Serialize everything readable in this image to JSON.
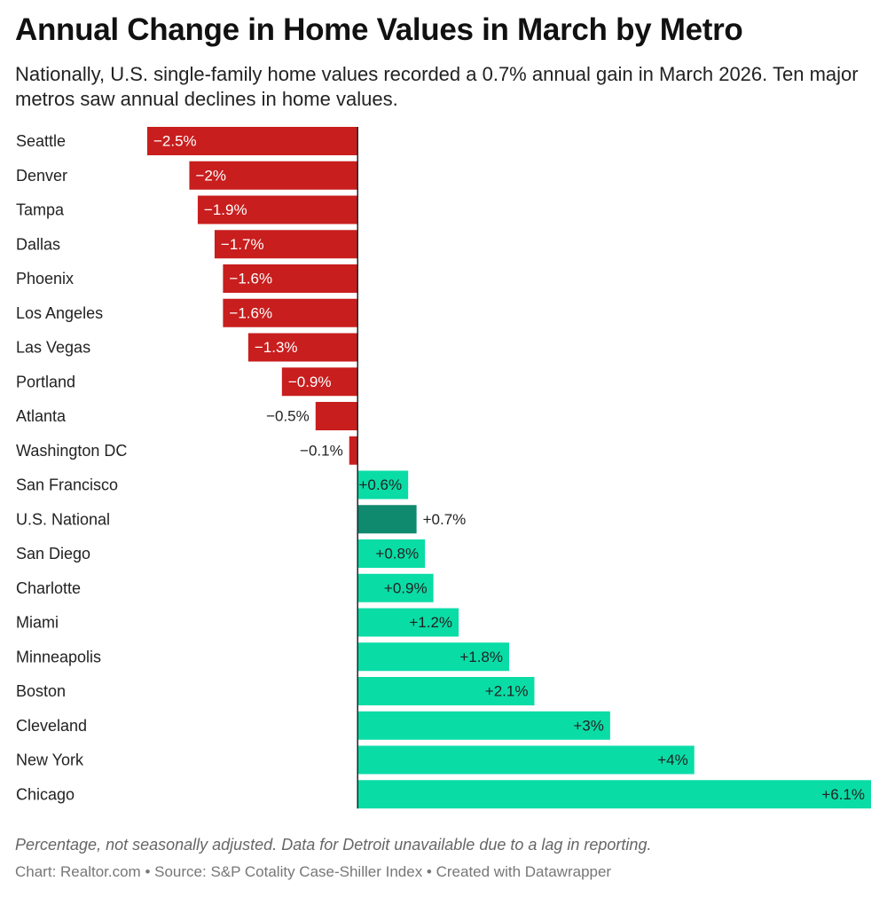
{
  "title": "Annual Change in Home Values in March by Metro",
  "subtitle": "Nationally, U.S. single-family home values recorded a 0.7% annual gain in March 2026. Ten major metros saw annual declines in home values.",
  "notes": "Percentage, not seasonally adjusted. Data for Detroit unavailable due to a lag in reporting.",
  "credits": {
    "chart": "Chart: Realtor.com",
    "separator": " • ",
    "source": "Source: S&P Cotality Case-Shiller Index",
    "created": "Created with Datawrapper"
  },
  "colors": {
    "negative": "#c81e1e",
    "positive": "#0adca6",
    "highlight": "#0f8a6e",
    "axis": "#222222"
  },
  "chart_data": {
    "type": "bar",
    "orientation": "horizontal",
    "categories": [
      "Seattle",
      "Denver",
      "Tampa",
      "Dallas",
      "Phoenix",
      "Los Angeles",
      "Las Vegas",
      "Portland",
      "Atlanta",
      "Washington DC",
      "San Francisco",
      "U.S. National",
      "San Diego",
      "Charlotte",
      "Miami",
      "Minneapolis",
      "Boston",
      "Cleveland",
      "New York",
      "Chicago"
    ],
    "values": [
      -2.5,
      -2.0,
      -1.9,
      -1.7,
      -1.6,
      -1.6,
      -1.3,
      -0.9,
      -0.5,
      -0.1,
      0.6,
      0.7,
      0.8,
      0.9,
      1.2,
      1.8,
      2.1,
      3.0,
      4.0,
      6.1
    ],
    "value_labels": [
      "−2.5%",
      "−2%",
      "−1.9%",
      "−1.7%",
      "−1.6%",
      "−1.6%",
      "−1.3%",
      "−0.9%",
      "−0.5%",
      "−0.1%",
      "+0.6%",
      "+0.7%",
      "+0.8%",
      "+0.9%",
      "+1.2%",
      "+1.8%",
      "+2.1%",
      "+3%",
      "+4%",
      "+6.1%"
    ],
    "highlight": "U.S. National",
    "xlim": [
      -2.5,
      6.1
    ],
    "grid": false
  }
}
